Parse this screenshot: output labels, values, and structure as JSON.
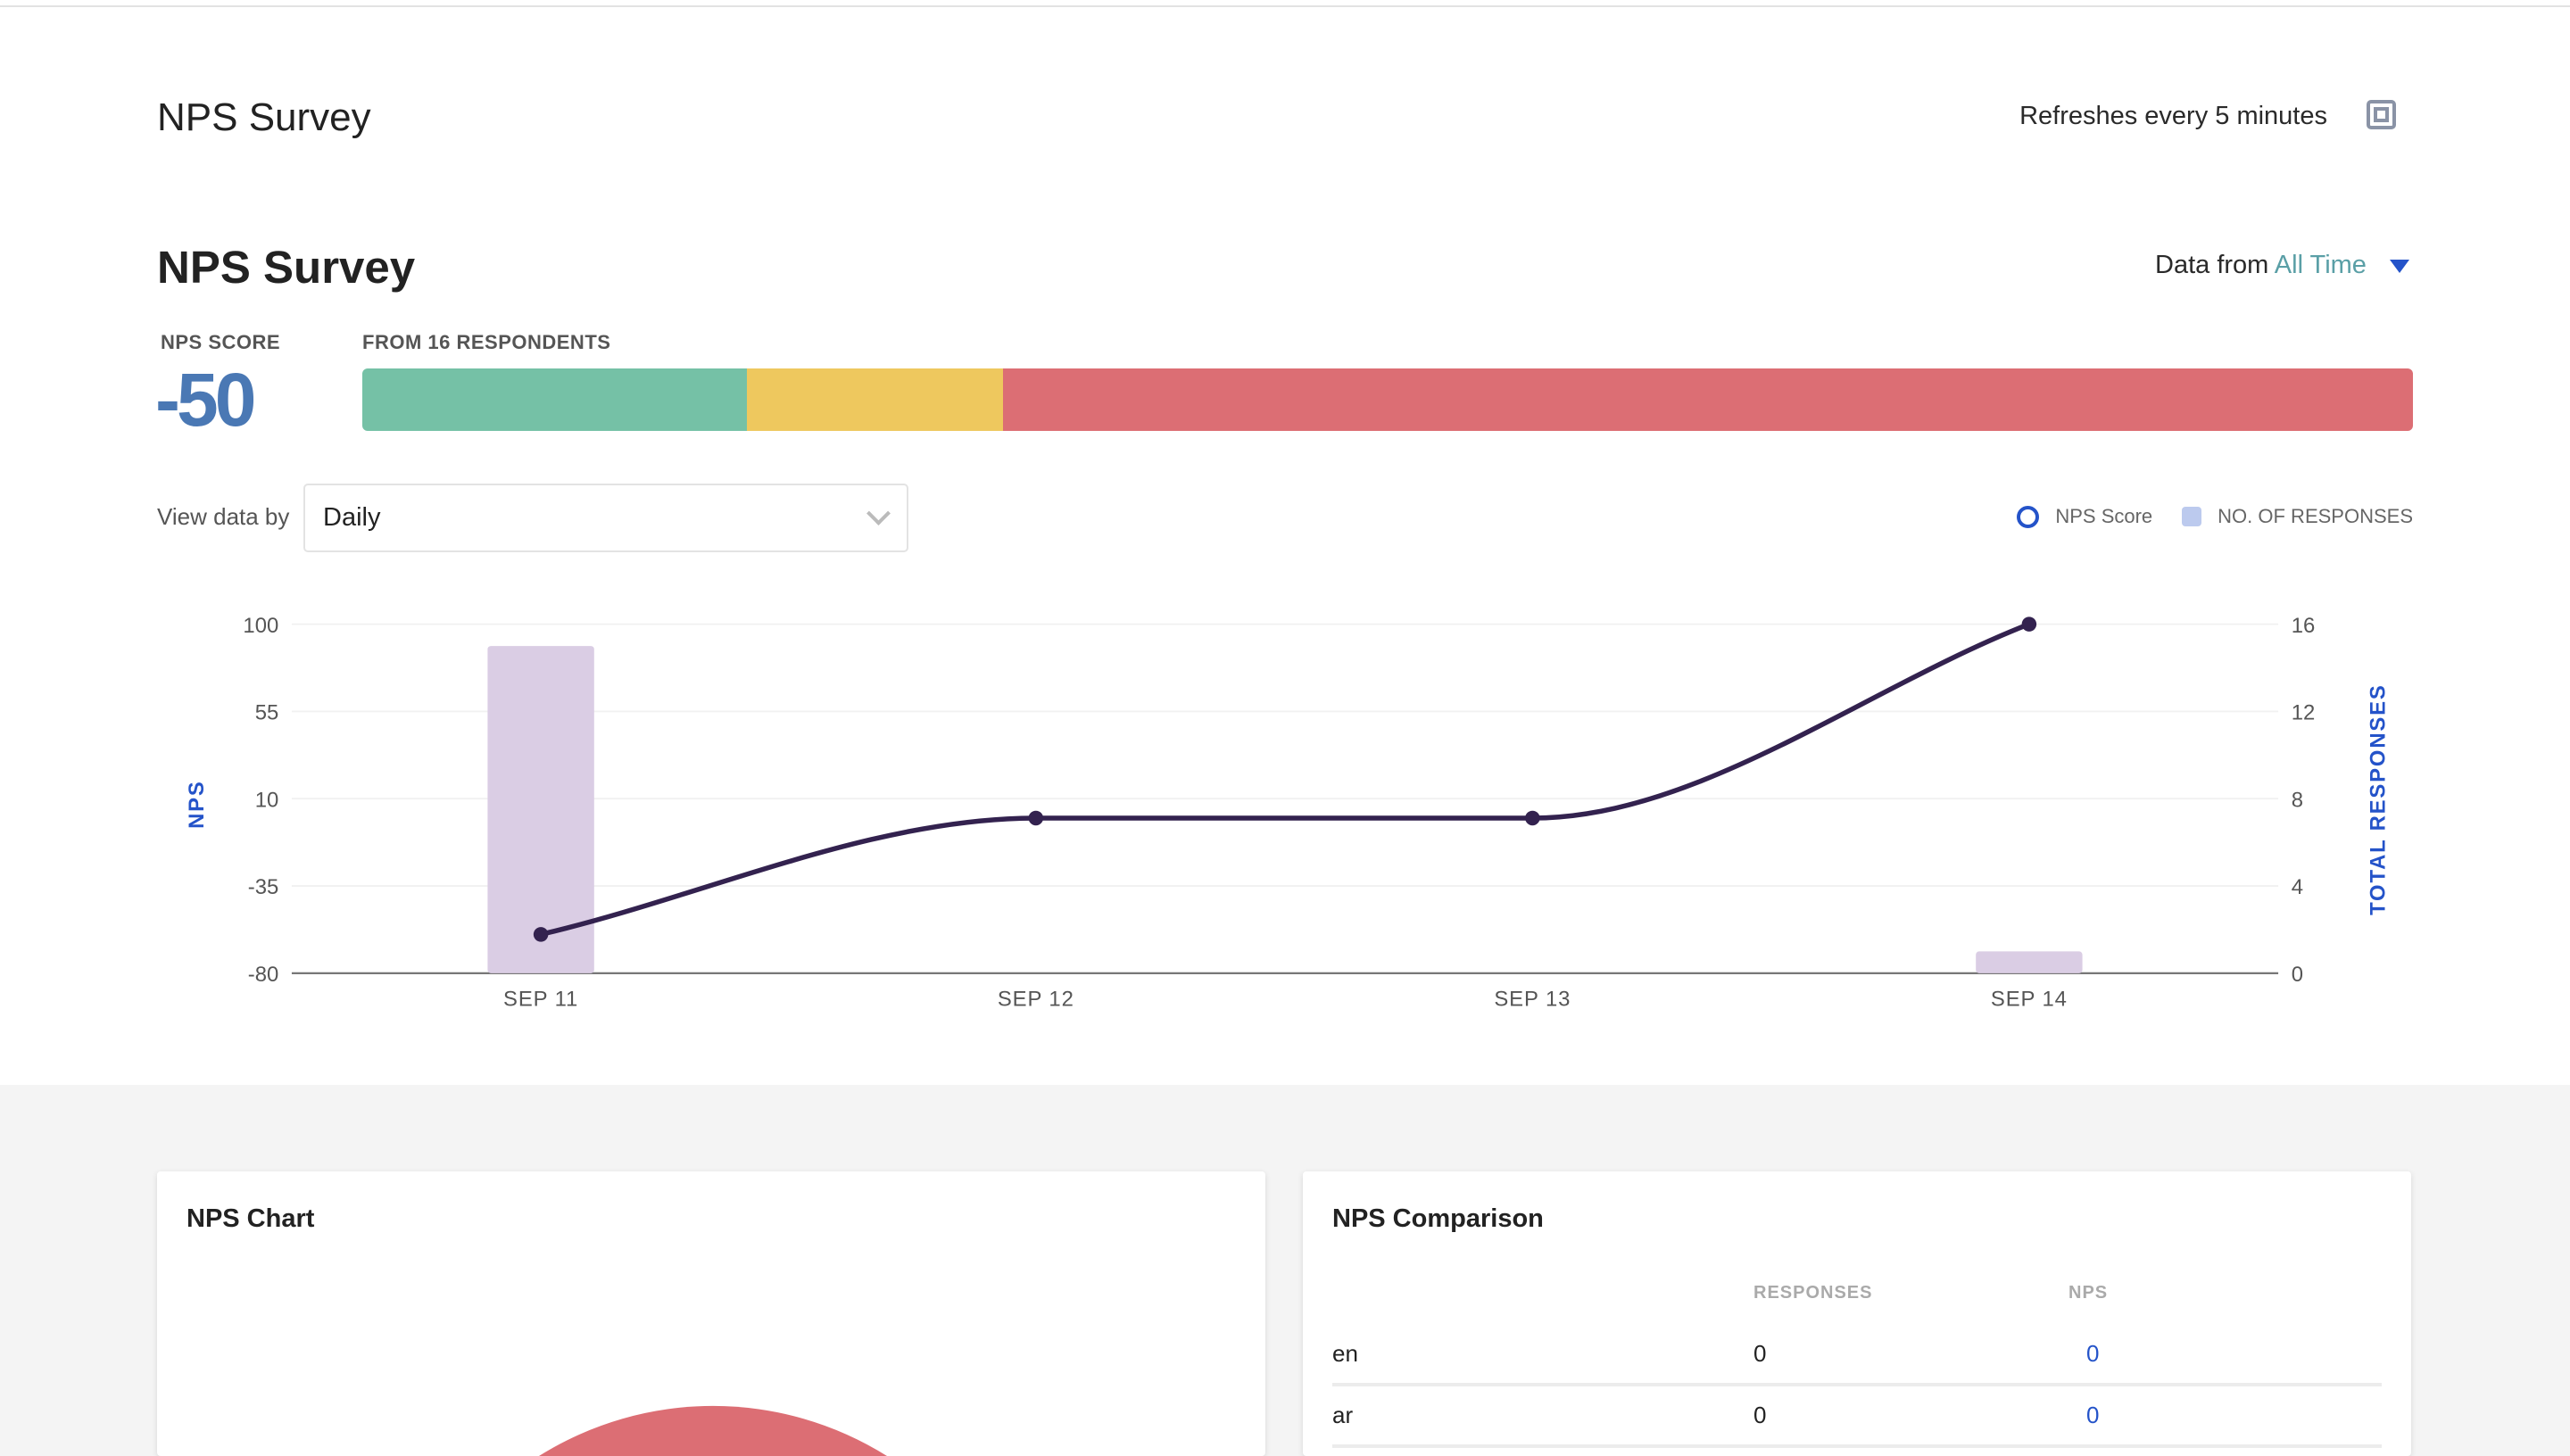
{
  "header": {
    "title": "NPS Survey",
    "refresh_text": "Refreshes every 5 minutes",
    "expand_icon": "fullscreen-icon"
  },
  "survey": {
    "title": "NPS Survey",
    "data_from_label": "Data from",
    "data_from_value": "All Time",
    "nps_score_label": "NPS SCORE",
    "nps_score": "-50",
    "respondents_label": "FROM 16 RESPONDENTS",
    "breakdown": [
      {
        "segment": "promoters",
        "count": 3,
        "color": "#75c1a6"
      },
      {
        "segment": "passives",
        "count": 2,
        "color": "#eec85e"
      },
      {
        "segment": "detractors",
        "count": 11,
        "color": "#dc6e74"
      }
    ],
    "view_by_label": "View data by",
    "view_by_value": "Daily",
    "legend": {
      "nps": "NPS Score",
      "responses": "NO. OF RESPONSES"
    }
  },
  "chart_data": {
    "type": "bar+line",
    "categories": [
      "SEP 11",
      "SEP 12",
      "SEP 13",
      "SEP 14"
    ],
    "series": [
      {
        "name": "NPS Score",
        "type": "line",
        "axis": "left",
        "values": [
          -60,
          0,
          0,
          100
        ],
        "color": "#33224f"
      },
      {
        "name": "NO. OF RESPONSES",
        "type": "bar",
        "axis": "right",
        "values": [
          15,
          0,
          0,
          1
        ],
        "color": "#dacde4"
      }
    ],
    "ylabel": "NPS",
    "y2label": "TOTAL RESPONSES",
    "ylim": [
      -80,
      100
    ],
    "y2lim": [
      0,
      16
    ],
    "yticks": [
      100,
      55,
      10,
      -35,
      -80
    ],
    "y2ticks": [
      16,
      12,
      8,
      4,
      0
    ],
    "grid": true
  },
  "cards": {
    "nps_chart": {
      "title": "NPS Chart",
      "color": "#dc6e74"
    },
    "comparison": {
      "title": "NPS Comparison",
      "headers": [
        "RESPONSES",
        "NPS"
      ],
      "rows": [
        {
          "label": "en",
          "responses": "0",
          "nps": "0"
        },
        {
          "label": "ar",
          "responses": "0",
          "nps": "0"
        }
      ]
    }
  }
}
